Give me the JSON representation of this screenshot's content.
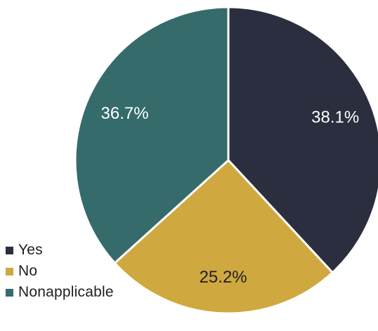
{
  "chart_data": {
    "type": "pie",
    "categories": [
      "Yes",
      "No",
      "Nonapplicable"
    ],
    "values": [
      38.1,
      25.2,
      36.7
    ],
    "labels": [
      "38.1%",
      "25.2%",
      "36.7%"
    ],
    "colors": [
      "#2b2e3e",
      "#cfa83f",
      "#356b6b"
    ],
    "label_colors": [
      "#ffffff",
      "#1f1f1f",
      "#ffffff"
    ],
    "start_angle_deg": 0,
    "direction": "clockwise",
    "legend_position": "bottom-left"
  },
  "legend": {
    "items": [
      {
        "label": "Yes",
        "color": "#2b2e3e"
      },
      {
        "label": "No",
        "color": "#cfa83f"
      },
      {
        "label": "Nonapplicable",
        "color": "#356b6b"
      }
    ]
  }
}
